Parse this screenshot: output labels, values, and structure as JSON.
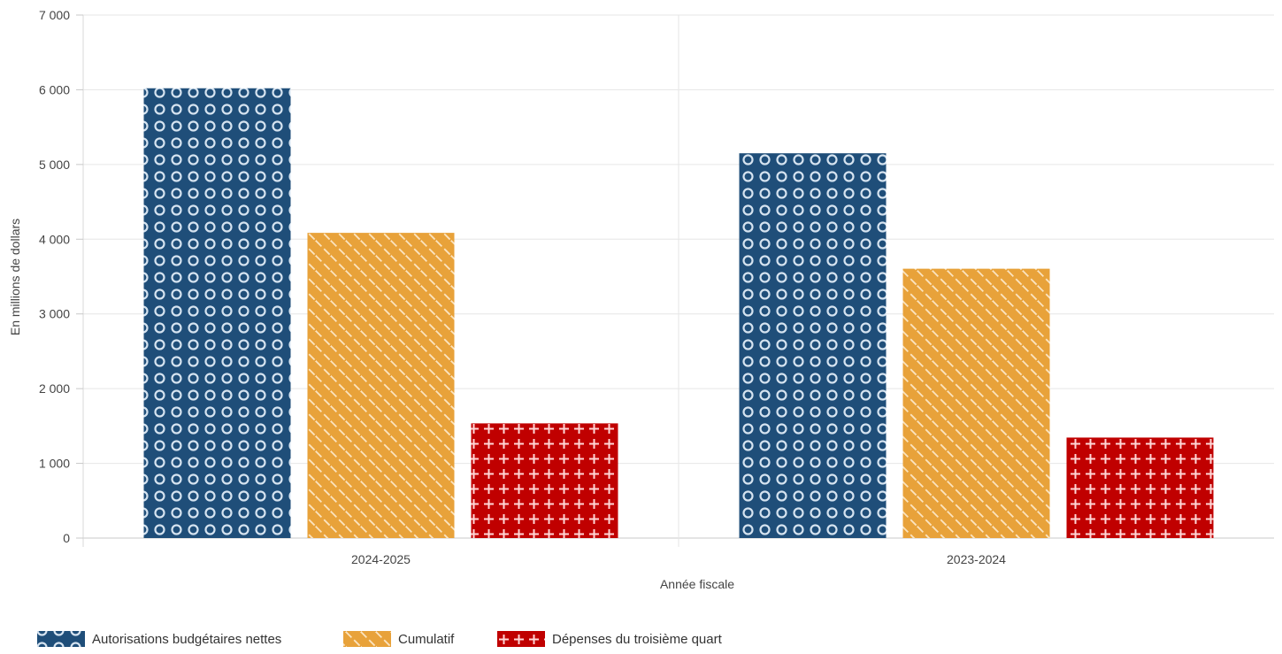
{
  "chart_data": {
    "type": "bar",
    "title": "",
    "xlabel": "Année fiscale",
    "ylabel": "En millions de dollars",
    "categories": [
      "2024-2025",
      "2023-2024"
    ],
    "series": [
      {
        "name": "Autorisations budgétaires nettes",
        "values": [
          6020,
          5150
        ],
        "color": "#1f4e79",
        "pattern": "circles"
      },
      {
        "name": "Cumulatif",
        "values": [
          4085,
          3605
        ],
        "color": "#e8a23a",
        "pattern": "diagonal-lines"
      },
      {
        "name": "Dépenses du troisième quart",
        "values": [
          1535,
          1345
        ],
        "color": "#c00000",
        "pattern": "plus"
      }
    ],
    "ylim": [
      0,
      7000
    ],
    "yticks": [
      0,
      1000,
      2000,
      3000,
      4000,
      5000,
      6000,
      7000
    ],
    "ytick_labels": [
      "0",
      "1 000",
      "2 000",
      "3 000",
      "4 000",
      "5 000",
      "6 000",
      "7 000"
    ],
    "grid": true,
    "legend_position": "bottom-left"
  }
}
